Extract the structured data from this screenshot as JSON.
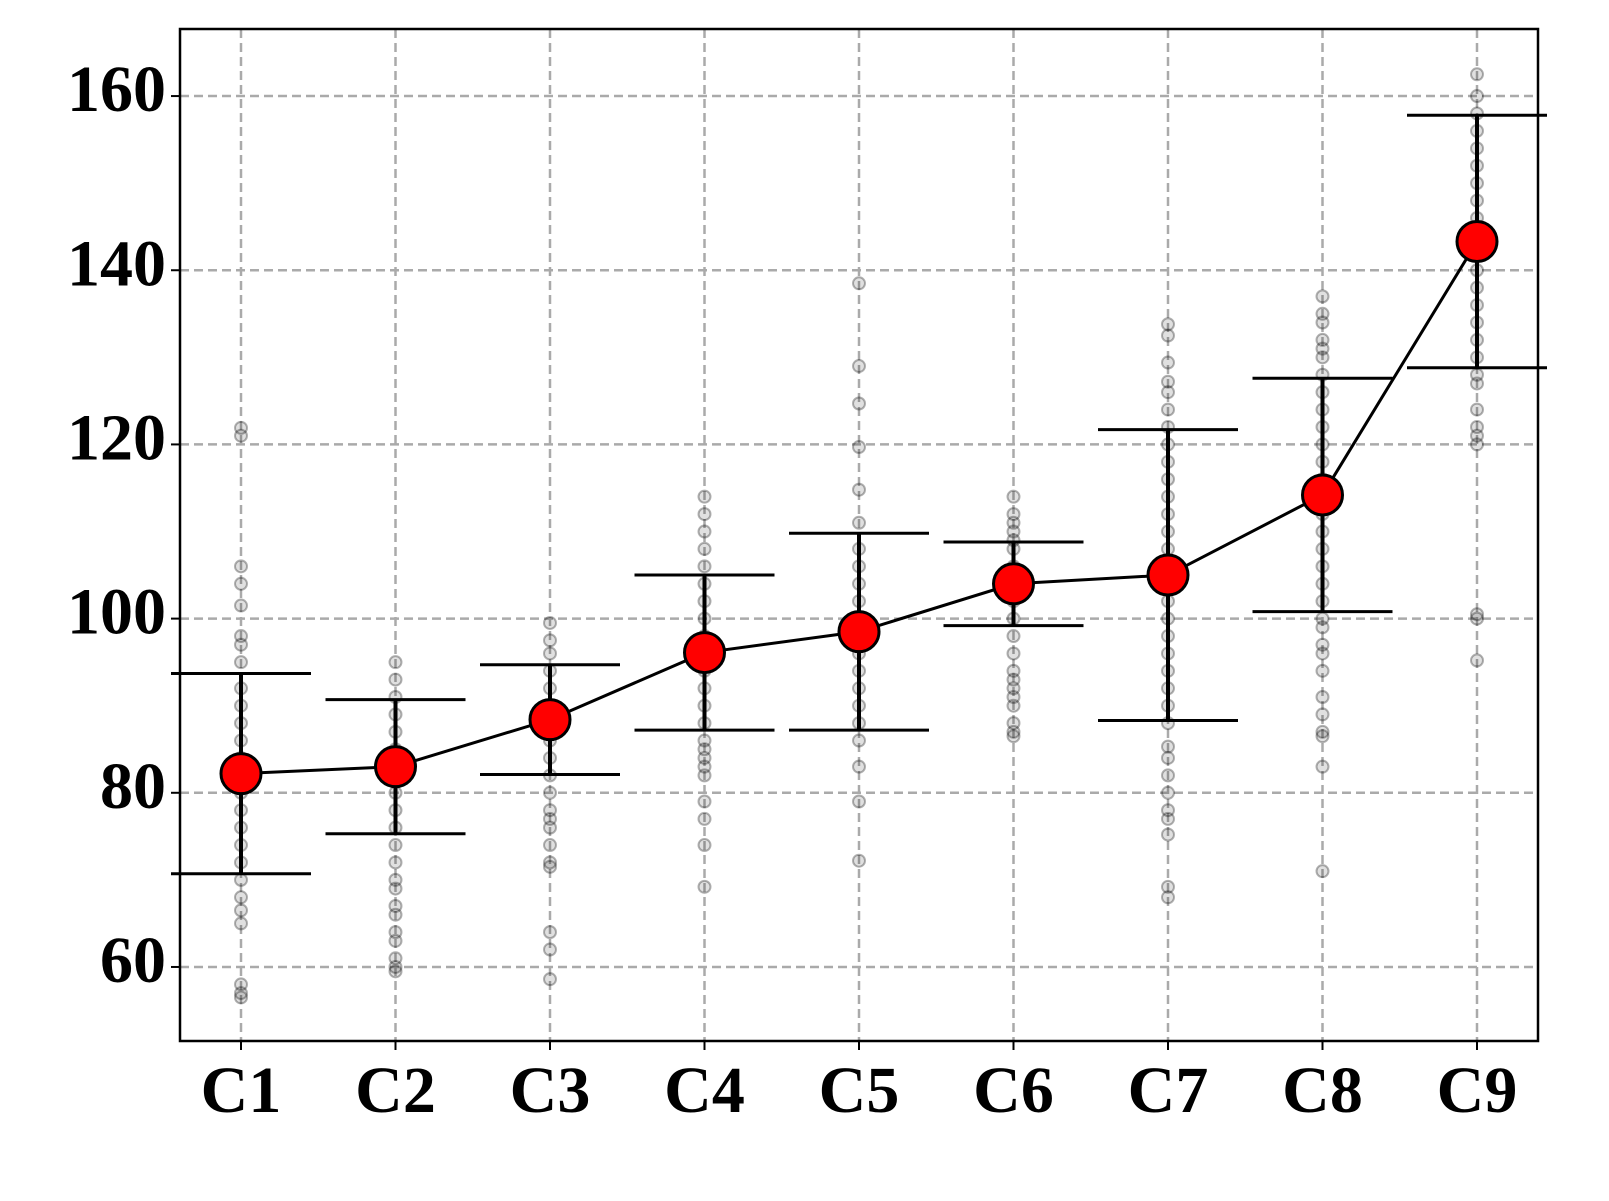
{
  "chart_data": {
    "type": "errorbar",
    "categories": [
      "C1",
      "C2",
      "C3",
      "C4",
      "C5",
      "C6",
      "C7",
      "C8",
      "C9"
    ],
    "values": [
      82.2,
      83.0,
      88.4,
      96.1,
      98.5,
      104.0,
      105.0,
      114.2,
      143.3
    ],
    "errors": [
      11.5,
      7.7,
      6.3,
      8.9,
      11.3,
      4.8,
      16.7,
      13.4,
      14.5
    ],
    "points": [
      [
        121.9,
        121,
        106,
        104,
        101.5,
        98,
        97,
        95,
        92,
        90,
        88,
        86,
        84,
        80,
        78,
        76,
        74,
        72,
        70,
        68,
        66.5,
        65,
        58,
        57,
        56.5
      ],
      [
        95,
        93,
        91,
        89,
        87,
        85,
        80,
        78,
        76,
        74,
        72,
        70,
        69,
        67,
        66,
        64,
        63,
        61,
        60,
        59.5
      ],
      [
        99.5,
        97.5,
        96,
        94,
        92,
        90,
        88,
        86,
        84,
        82,
        80,
        78,
        77,
        76,
        74,
        72,
        71.5,
        64,
        62,
        58.6
      ],
      [
        114,
        112,
        110,
        108,
        106,
        104,
        102,
        100,
        98,
        96,
        94,
        92,
        90,
        88,
        86,
        85,
        84,
        83,
        82,
        79,
        77,
        74,
        69.2
      ],
      [
        138.5,
        129,
        124.7,
        119.7,
        114.8,
        111,
        108,
        106,
        104,
        102,
        100,
        98,
        96,
        94,
        92,
        90,
        88,
        86,
        83,
        79,
        72.2
      ],
      [
        114,
        112,
        111,
        110,
        109,
        108,
        106,
        104,
        102,
        100,
        98,
        96,
        94,
        93,
        92,
        91,
        90,
        88,
        87,
        86.5
      ],
      [
        133.8,
        132.5,
        129.4,
        127.2,
        126,
        124,
        122,
        120,
        118,
        116,
        114,
        112,
        110,
        108,
        106,
        104,
        102,
        100,
        98,
        96,
        94,
        92,
        90,
        88,
        85.3,
        84,
        82,
        80,
        78,
        77,
        75.2,
        69.2,
        68
      ],
      [
        137,
        135,
        134,
        132,
        131,
        130,
        128,
        126,
        124,
        122,
        120,
        118,
        116,
        114,
        112,
        110,
        108,
        106,
        104,
        102,
        100,
        99,
        97,
        96,
        94,
        91,
        89,
        87,
        86.5,
        83,
        71
      ],
      [
        162.5,
        160,
        158,
        156,
        154,
        152,
        150,
        148,
        146,
        144,
        142,
        140,
        138,
        136,
        134,
        132,
        130,
        128,
        127,
        124,
        122,
        121,
        120,
        100.5,
        100,
        95.2
      ]
    ],
    "color": "#ff0000",
    "line_color": "#000000",
    "point_color": "#000000",
    "ylim": [
      51.5,
      167.7
    ],
    "yticks": [
      60,
      80,
      100,
      120,
      140,
      160
    ],
    "grid": true
  }
}
